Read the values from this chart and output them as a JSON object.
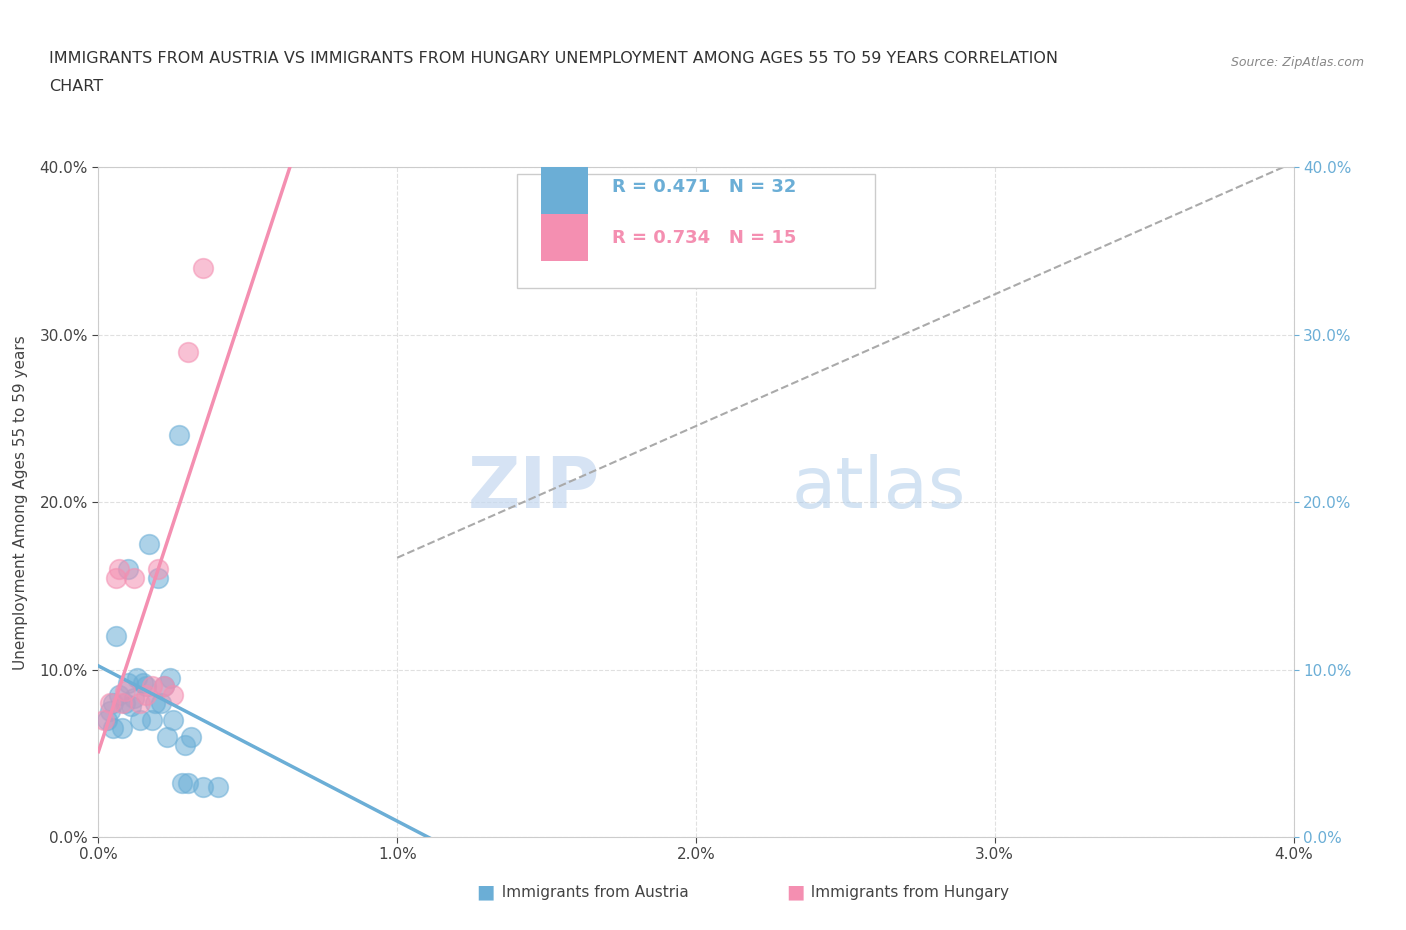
{
  "title_line1": "IMMIGRANTS FROM AUSTRIA VS IMMIGRANTS FROM HUNGARY UNEMPLOYMENT AMONG AGES 55 TO 59 YEARS CORRELATION",
  "title_line2": "CHART",
  "source": "Source: ZipAtlas.com",
  "ylabel": "Unemployment Among Ages 55 to 59 years",
  "xlim": [
    0.0,
    0.04
  ],
  "ylim": [
    0.0,
    0.4
  ],
  "xticks": [
    0.0,
    0.01,
    0.02,
    0.03,
    0.04
  ],
  "yticks": [
    0.0,
    0.1,
    0.2,
    0.3,
    0.4
  ],
  "xticklabels": [
    "0.0%",
    "1.0%",
    "2.0%",
    "3.0%",
    "4.0%"
  ],
  "yticklabels": [
    "0.0%",
    "10.0%",
    "20.0%",
    "30.0%",
    "40.0%"
  ],
  "austria_color": "#6baed6",
  "hungary_color": "#f48fb1",
  "austria_R": 0.471,
  "austria_N": 32,
  "hungary_R": 0.734,
  "hungary_N": 15,
  "watermark_zip": "ZIP",
  "watermark_atlas": "atlas",
  "background_color": "#ffffff",
  "grid_color": "#dddddd",
  "austria_scatter_x": [
    0.0003,
    0.0004,
    0.0005,
    0.0005,
    0.0006,
    0.0007,
    0.0008,
    0.0009,
    0.001,
    0.001,
    0.0011,
    0.0012,
    0.0013,
    0.0014,
    0.0015,
    0.0016,
    0.0017,
    0.0018,
    0.0019,
    0.002,
    0.0021,
    0.0022,
    0.0023,
    0.0024,
    0.0025,
    0.0027,
    0.0028,
    0.0029,
    0.003,
    0.0031,
    0.0035,
    0.004
  ],
  "austria_scatter_y": [
    0.07,
    0.075,
    0.065,
    0.08,
    0.12,
    0.085,
    0.065,
    0.08,
    0.16,
    0.092,
    0.078,
    0.083,
    0.095,
    0.07,
    0.092,
    0.09,
    0.175,
    0.07,
    0.08,
    0.155,
    0.08,
    0.09,
    0.06,
    0.095,
    0.07,
    0.24,
    0.032,
    0.055,
    0.032,
    0.06,
    0.03,
    0.03
  ],
  "hungary_scatter_x": [
    0.0002,
    0.0004,
    0.0006,
    0.0007,
    0.0008,
    0.0009,
    0.0012,
    0.0014,
    0.0016,
    0.0018,
    0.002,
    0.0022,
    0.0025,
    0.003,
    0.0035
  ],
  "hungary_scatter_y": [
    0.07,
    0.08,
    0.155,
    0.16,
    0.08,
    0.087,
    0.155,
    0.08,
    0.085,
    0.09,
    0.16,
    0.09,
    0.085,
    0.29,
    0.34
  ],
  "dashed_color": "#aaaaaa"
}
